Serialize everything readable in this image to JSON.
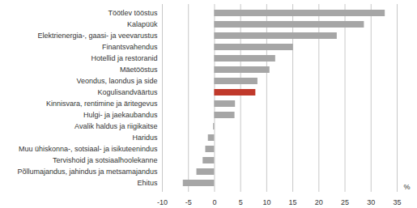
{
  "chart_data": {
    "type": "bar",
    "orientation": "horizontal",
    "categories": [
      "Töötlev tööstus",
      "Kalapüük",
      "Elektrienergia-, gaasi- ja veevarustus",
      "Finantsvahendus",
      "Hotellid ja restoranid",
      "Mäetööstus",
      "Veondus, laondus ja side",
      "Kogulisandväärtus",
      "Kinnisvara, rentimine ja äritegevus",
      "Hulgi- ja jaekaubandus",
      "Avalik haldus ja riigikaitse",
      "Haridus",
      "Muu ühiskonna-, sotsiaal- ja isikuteenindus",
      "Tervishoid ja sotsiaalhoolekanne",
      "Põllumajandus, jahindus ja metsamajandus",
      "Ehitus"
    ],
    "values": [
      32.7,
      28.7,
      23.5,
      15.1,
      11.7,
      10.6,
      8.3,
      7.9,
      4.0,
      3.9,
      -0.2,
      -1.2,
      -1.7,
      -2.2,
      -3.4,
      -6.0
    ],
    "colors": [
      "#a6a6a6",
      "#a6a6a6",
      "#a6a6a6",
      "#a6a6a6",
      "#a6a6a6",
      "#a6a6a6",
      "#a6a6a6",
      "#c0392b",
      "#a6a6a6",
      "#a6a6a6",
      "#a6a6a6",
      "#a6a6a6",
      "#a6a6a6",
      "#a6a6a6",
      "#a6a6a6",
      "#a6a6a6"
    ],
    "x_label": "%",
    "xlim": [
      -10,
      35
    ],
    "xticks": [
      -10,
      -5,
      0,
      5,
      10,
      15,
      20,
      25,
      30,
      35
    ],
    "grid": true
  }
}
